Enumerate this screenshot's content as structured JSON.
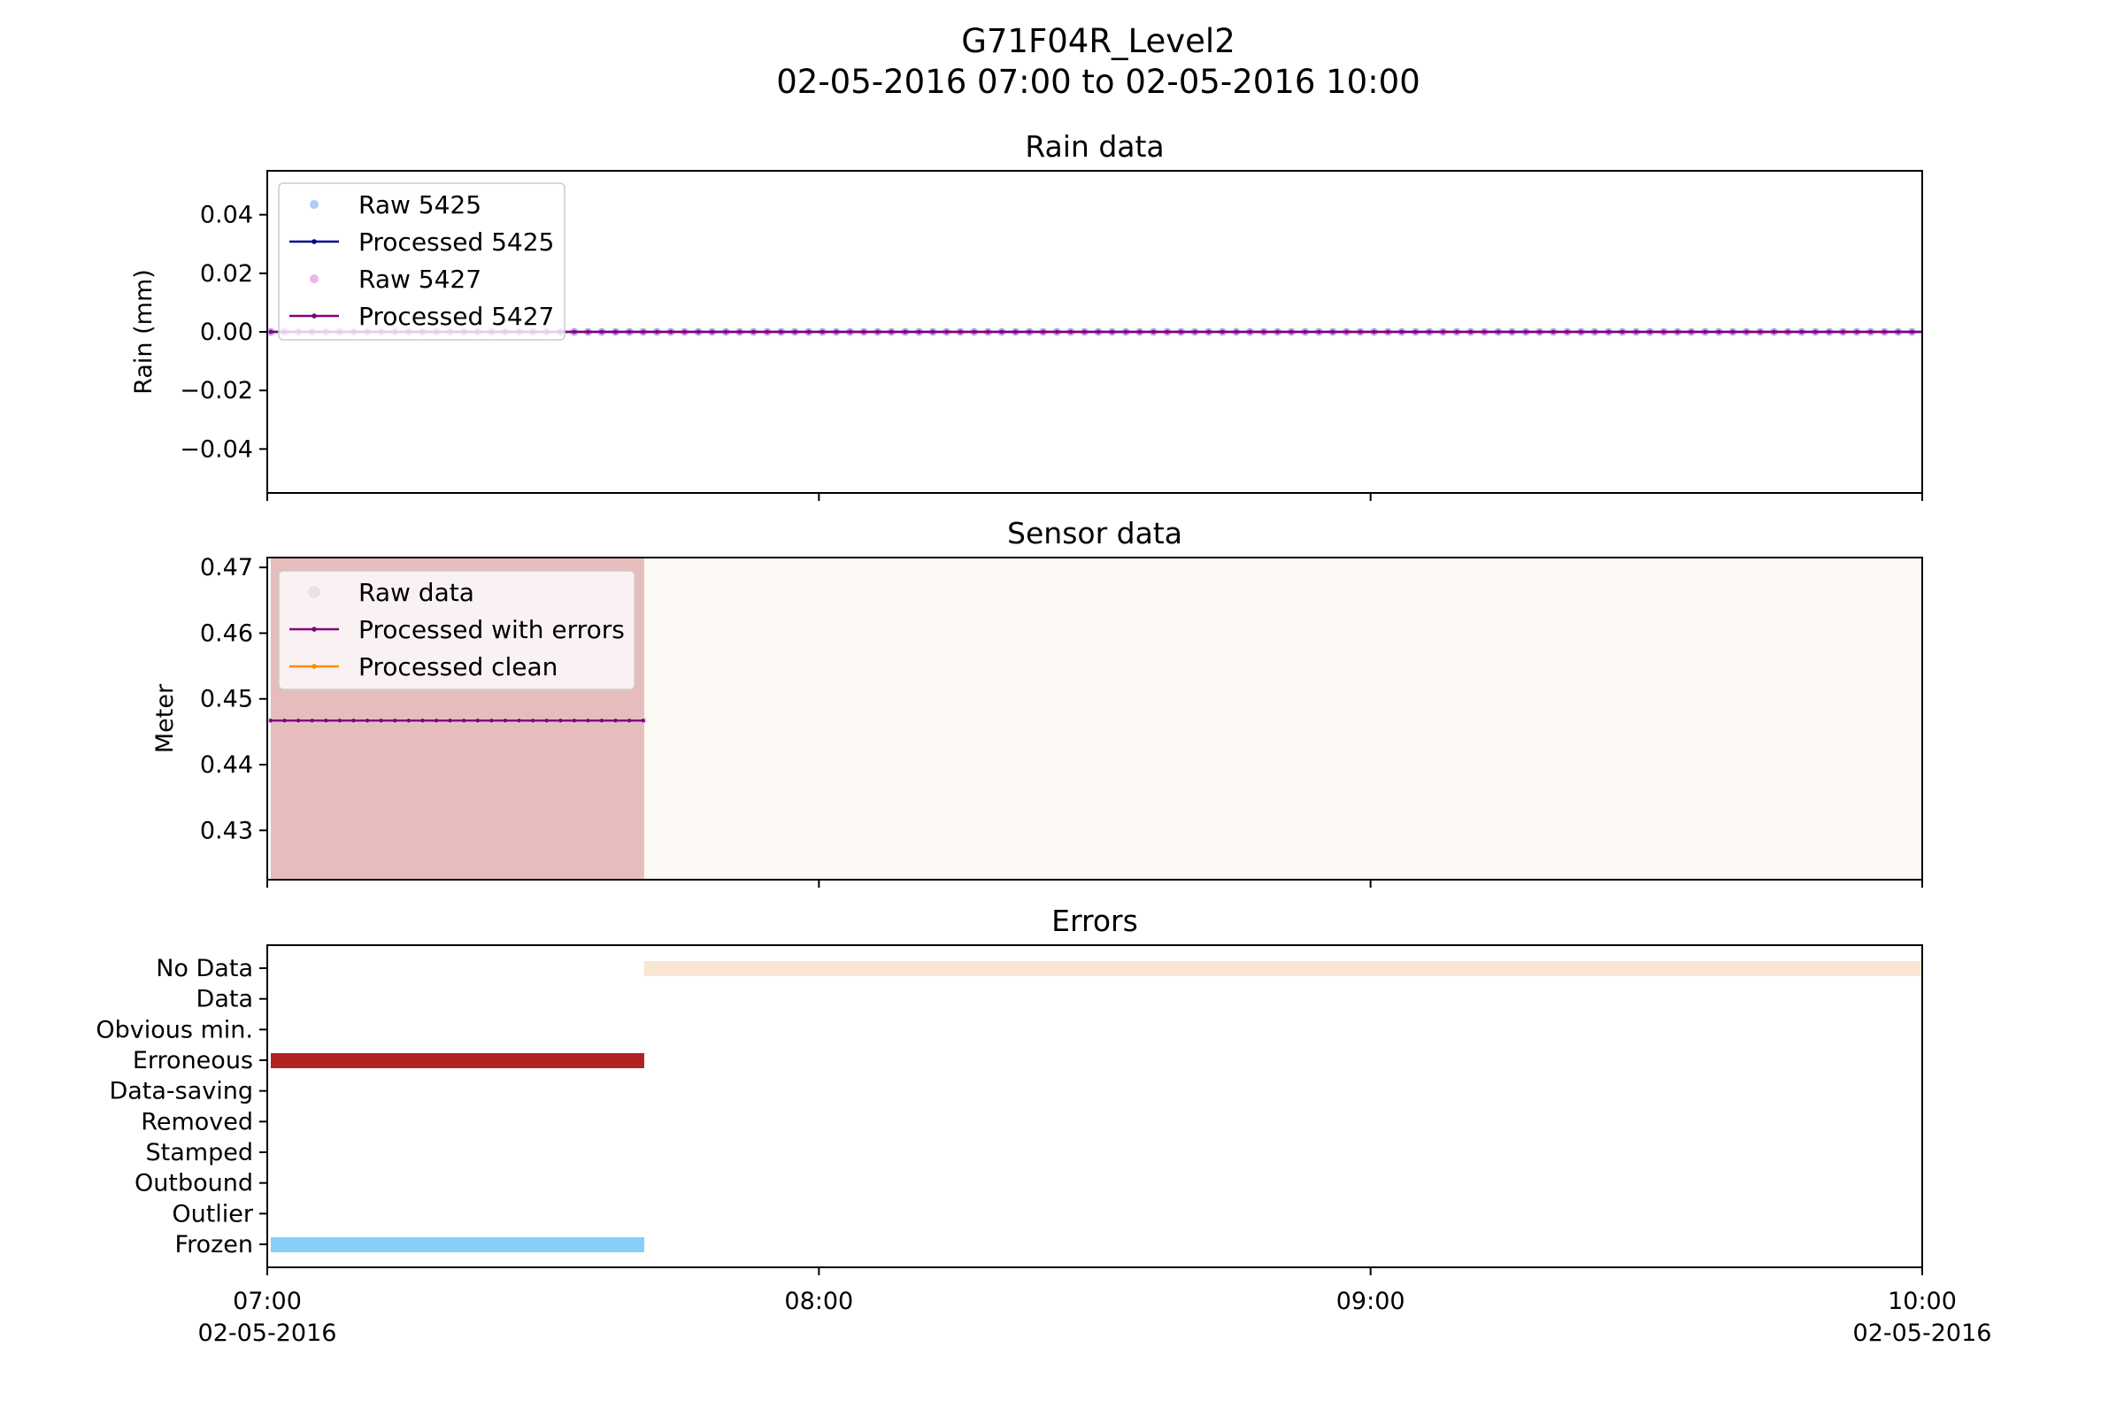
{
  "figure": {
    "title_line1": "G71F04R_Level2",
    "title_line2": "02-05-2016 07:00 to 02-05-2016 10:00"
  },
  "chart_data": [
    {
      "type": "line",
      "title": "Rain data",
      "ylabel": "Rain (mm)",
      "xlabel": "",
      "xlim": [
        "02-05-2016 07:00",
        "02-05-2016 10:00"
      ],
      "ylim": [
        -0.055,
        0.055
      ],
      "yticks": [
        0.04,
        0.02,
        0.0,
        -0.02,
        -0.04
      ],
      "yticklabels": [
        "0.04",
        "0.02",
        "0.00",
        "−0.02",
        "−0.04"
      ],
      "legend_position": "upper-left",
      "series": [
        {
          "name": "Raw 5425",
          "style": "markers",
          "color": "#6495ed",
          "x_range": [
            "07:00",
            "10:00"
          ],
          "value": 0.0
        },
        {
          "name": "Processed 5425",
          "style": "line-markers",
          "color": "#00008b",
          "x_range": [
            "07:00",
            "10:00"
          ],
          "value": 0.0
        },
        {
          "name": "Raw 5427",
          "style": "markers",
          "color": "#da70d6",
          "x_range": [
            "07:00",
            "10:00"
          ],
          "value": 0.0
        },
        {
          "name": "Processed 5427",
          "style": "line-markers",
          "color": "#800080",
          "x_range": [
            "07:00",
            "10:00"
          ],
          "value": 0.0
        }
      ]
    },
    {
      "type": "line",
      "title": "Sensor data",
      "ylabel": "Meter",
      "xlabel": "",
      "xlim": [
        "02-05-2016 07:00",
        "02-05-2016 10:00"
      ],
      "ylim": [
        0.4225,
        0.4715
      ],
      "yticks": [
        0.47,
        0.46,
        0.45,
        0.44,
        0.43
      ],
      "yticklabels": [
        "0.47",
        "0.46",
        "0.45",
        "0.44",
        "0.43"
      ],
      "legend_position": "upper-left",
      "background_bands": [
        {
          "from": "07:00",
          "to": "07:41",
          "color": "#e6bcbd"
        },
        {
          "from": "07:41",
          "to": "10:00",
          "color": "#fcf8f3"
        }
      ],
      "series": [
        {
          "name": "Raw data",
          "style": "markers",
          "color": "#d3d3d3",
          "x_range": [
            "07:00",
            "07:41"
          ],
          "value": 0.4467
        },
        {
          "name": "Processed with errors",
          "style": "line-markers",
          "color": "#800080",
          "x_range": [
            "07:00",
            "07:41"
          ],
          "value": 0.4467
        },
        {
          "name": "Processed clean",
          "style": "line-markers",
          "color": "#ff8c00",
          "x_range": [],
          "value": null
        }
      ]
    },
    {
      "type": "timeline",
      "title": "Errors",
      "xlim": [
        "02-05-2016 07:00",
        "02-05-2016 10:00"
      ],
      "categories": [
        "No Data",
        "Data",
        "Obvious min.",
        "Erroneous",
        "Data-saving",
        "Removed",
        "Stamped",
        "Outbound",
        "Outlier",
        "Frozen"
      ],
      "bars": [
        {
          "category": "No Data",
          "from": "07:41",
          "to": "10:00",
          "color": "#f9e6d3"
        },
        {
          "category": "Erroneous",
          "from": "07:00",
          "to": "07:41",
          "color": "#b22222"
        },
        {
          "category": "Frozen",
          "from": "07:00",
          "to": "07:41",
          "color": "#87cefa"
        }
      ],
      "xticks": [
        "07:00",
        "08:00",
        "09:00",
        "10:00"
      ],
      "xticklabels": [
        {
          "time": "07:00",
          "date": "02-05-2016"
        },
        {
          "time": "08:00",
          "date": ""
        },
        {
          "time": "09:00",
          "date": ""
        },
        {
          "time": "10:00",
          "date": "02-05-2016"
        }
      ]
    }
  ]
}
